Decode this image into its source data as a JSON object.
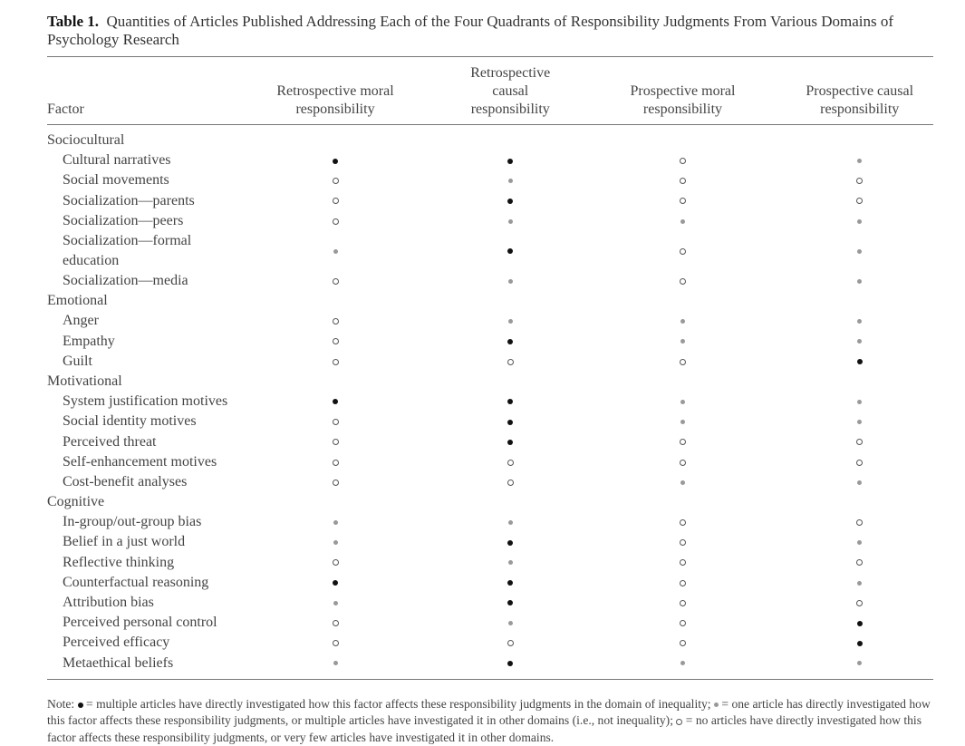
{
  "title": {
    "label": "Table 1.",
    "text": "Quantities of Articles Published Addressing Each of the Four Quadrants of Responsibility Judgments From Various Domains of Psychology Research"
  },
  "columns": [
    "Factor",
    "Retrospective moral responsibility",
    "Retrospective causal responsibility",
    "Prospective moral responsibility",
    "Prospective causal responsibility"
  ],
  "legend_codes": {
    "M": "multiple articles (black dot)",
    "O": "one article (gray dot)",
    "N": "no articles (open circle)"
  },
  "groups": [
    {
      "name": "Sociocultural",
      "rows": [
        {
          "factor": "Cultural narratives",
          "values": [
            "M",
            "M",
            "N",
            "O"
          ]
        },
        {
          "factor": "Social movements",
          "values": [
            "N",
            "O",
            "N",
            "N"
          ]
        },
        {
          "factor": "Socialization—parents",
          "values": [
            "N",
            "M",
            "N",
            "N"
          ]
        },
        {
          "factor": "Socialization—peers",
          "values": [
            "N",
            "O",
            "O",
            "O"
          ]
        },
        {
          "factor": "Socialization—formal education",
          "values": [
            "O",
            "M",
            "N",
            "O"
          ]
        },
        {
          "factor": "Socialization—media",
          "values": [
            "N",
            "O",
            "N",
            "O"
          ]
        }
      ]
    },
    {
      "name": "Emotional",
      "rows": [
        {
          "factor": "Anger",
          "values": [
            "N",
            "O",
            "O",
            "O"
          ]
        },
        {
          "factor": "Empathy",
          "values": [
            "N",
            "M",
            "O",
            "O"
          ]
        },
        {
          "factor": "Guilt",
          "values": [
            "N",
            "N",
            "N",
            "M"
          ]
        }
      ]
    },
    {
      "name": "Motivational",
      "rows": [
        {
          "factor": "System justification motives",
          "values": [
            "M",
            "M",
            "O",
            "O"
          ]
        },
        {
          "factor": "Social identity motives",
          "values": [
            "N",
            "M",
            "O",
            "O"
          ]
        },
        {
          "factor": "Perceived threat",
          "values": [
            "N",
            "M",
            "N",
            "N"
          ]
        },
        {
          "factor": "Self-enhancement motives",
          "values": [
            "N",
            "N",
            "N",
            "N"
          ]
        },
        {
          "factor": "Cost-benefit analyses",
          "values": [
            "N",
            "N",
            "O",
            "O"
          ]
        }
      ]
    },
    {
      "name": "Cognitive",
      "rows": [
        {
          "factor": "In-group/out-group bias",
          "values": [
            "O",
            "O",
            "N",
            "N"
          ]
        },
        {
          "factor": "Belief in a just world",
          "values": [
            "O",
            "M",
            "N",
            "O"
          ]
        },
        {
          "factor": "Reflective thinking",
          "values": [
            "N",
            "O",
            "N",
            "N"
          ]
        },
        {
          "factor": "Counterfactual reasoning",
          "values": [
            "M",
            "M",
            "N",
            "O"
          ]
        },
        {
          "factor": "Attribution bias",
          "values": [
            "O",
            "M",
            "N",
            "N"
          ]
        },
        {
          "factor": "Perceived personal control",
          "values": [
            "N",
            "O",
            "N",
            "M"
          ]
        },
        {
          "factor": "Perceived efficacy",
          "values": [
            "N",
            "N",
            "N",
            "M"
          ]
        },
        {
          "factor": "Metaethical beliefs",
          "values": [
            "O",
            "M",
            "O",
            "O"
          ]
        }
      ]
    }
  ],
  "note": {
    "prefix": "Note: ",
    "multiple": " = multiple articles have directly investigated how this factor affects these responsibility judgments in the domain of inequality; ",
    "one": " = one article has directly investigated how this factor affects these responsibility judgments, or multiple articles have investigated it in other domains (i.e., not inequality); ",
    "none": " = no articles have directly investigated how this factor affects these responsibility judgments, or very few articles have investigated it in other domains."
  }
}
